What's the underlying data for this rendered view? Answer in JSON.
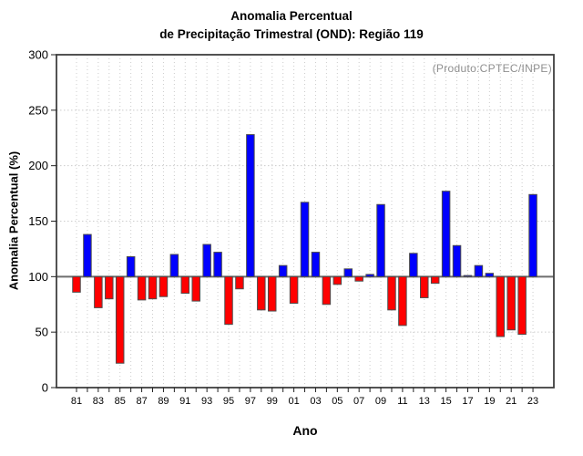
{
  "figure": {
    "title_line1": "Anomalia Percentual",
    "title_line2": "de Precipitação Trimestral (OND): Região 119",
    "annotation": "(Produto:CPTEC/INPE)",
    "xlabel": "Ano",
    "ylabel": "Anomalia Percentual (%)"
  },
  "chart_data": {
    "type": "bar",
    "title": "Anomalia Percentual de Precipitação Trimestral (OND): Região 119",
    "xlabel": "Ano",
    "ylabel": "Anomalia Percentual (%)",
    "annotation": "(Produto:CPTEC/INPE)",
    "ylim": [
      0,
      300
    ],
    "yticks": [
      0,
      50,
      100,
      150,
      200,
      250,
      300
    ],
    "baseline": 100,
    "grid": "dotted, vertical line per year and horizontal line per 50 units",
    "legend": "none",
    "categories": [
      "81",
      "82",
      "83",
      "84",
      "85",
      "86",
      "87",
      "88",
      "89",
      "90",
      "91",
      "92",
      "93",
      "94",
      "95",
      "96",
      "97",
      "98",
      "99",
      "00",
      "01",
      "02",
      "03",
      "04",
      "05",
      "06",
      "07",
      "08",
      "09",
      "10",
      "11",
      "12",
      "13",
      "14",
      "15",
      "16",
      "17",
      "18",
      "19",
      "20",
      "21",
      "22",
      "23"
    ],
    "x_labels_shown": [
      "81",
      "83",
      "85",
      "87",
      "89",
      "91",
      "93",
      "95",
      "97",
      "99",
      "01",
      "03",
      "05",
      "07",
      "09",
      "11",
      "13",
      "15",
      "17",
      "19",
      "21",
      "23"
    ],
    "values": [
      86,
      138,
      72,
      80,
      22,
      118,
      79,
      80,
      82,
      120,
      85,
      78,
      129,
      122,
      57,
      89,
      228,
      70,
      69,
      110,
      76,
      167,
      122,
      75,
      93,
      107,
      96,
      102,
      165,
      70,
      56,
      121,
      81,
      94,
      177,
      128,
      101,
      110,
      103,
      46,
      52,
      48,
      174
    ],
    "colors": {
      "above_baseline": "#0000ff",
      "below_baseline": "#ff0000",
      "bar_edge": "#4d4d4d",
      "grid": "#cccccc",
      "frame": "#404040",
      "baseline_line": "#6e6e6e",
      "tick": "#222222",
      "annotation_text": "#8f8f8f"
    }
  }
}
